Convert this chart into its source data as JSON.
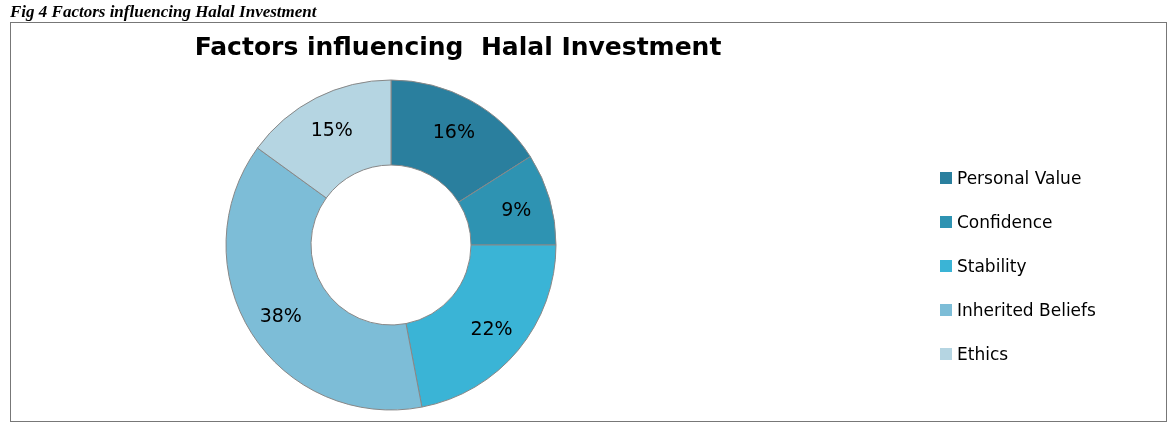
{
  "chart_data": {
    "type": "donut",
    "title": "Factors influencing  Halal Investment",
    "annotations": [
      "Fig 4 Factors influencing Halal Investment"
    ],
    "categories": [
      "Personal Value",
      "Confidence",
      "Stability",
      "Inherited Beliefs",
      "Ethics"
    ],
    "values": [
      16,
      9,
      22,
      38,
      15
    ],
    "value_labels": [
      "16%",
      "9%",
      "22%",
      "38%",
      "15%"
    ],
    "colors": [
      "#2a7f9e",
      "#2e93b2",
      "#3ab4d6",
      "#7dbdd7",
      "#b5d5e2"
    ],
    "legend": "right"
  }
}
